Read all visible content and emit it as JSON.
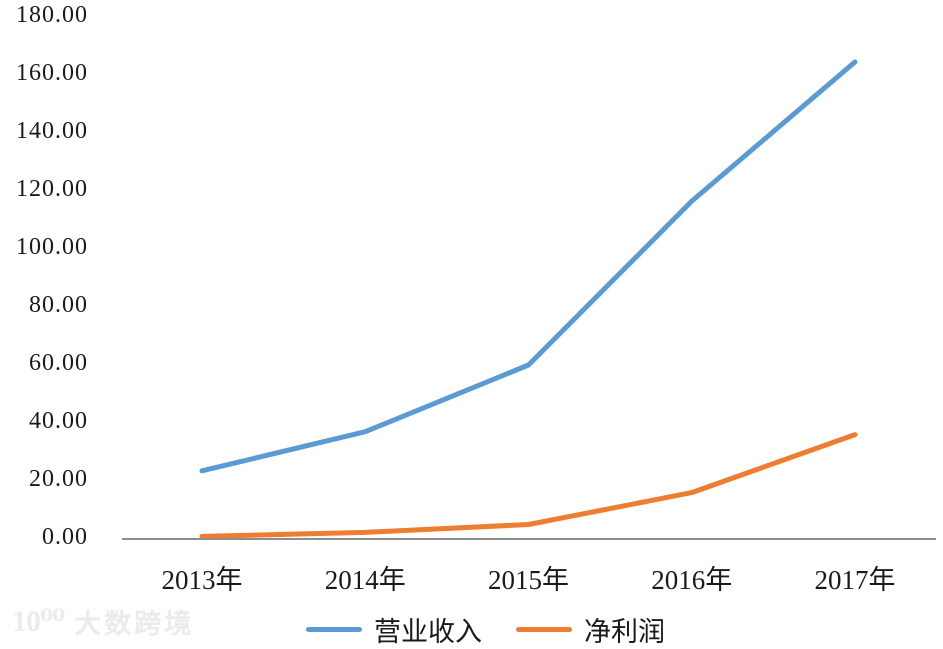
{
  "chart_data": {
    "type": "line",
    "categories": [
      "2013年",
      "2014年",
      "2015年",
      "2016年",
      "2017年"
    ],
    "series": [
      {
        "name": "营业收入",
        "key": "operating-revenue",
        "color": "#5B9BD5",
        "values": [
          23.5,
          37.0,
          60.0,
          116.5,
          164.5
        ]
      },
      {
        "name": "净利润",
        "key": "net-profit",
        "color": "#ED7D31",
        "values": [
          0.9,
          2.3,
          5.0,
          16.0,
          36.0
        ]
      }
    ],
    "yticks": [
      "0.00",
      "20.00",
      "40.00",
      "60.00",
      "80.00",
      "100.00",
      "120.00",
      "140.00",
      "160.00",
      "180.00"
    ],
    "ylim": [
      0,
      180
    ],
    "grid": false,
    "legend_position": "bottom"
  },
  "axis": {
    "line_color": "#8c8c8c"
  },
  "watermark": {
    "logo": "10⁰⁰",
    "text": "大数跨境",
    "color": "#ebebeb"
  }
}
